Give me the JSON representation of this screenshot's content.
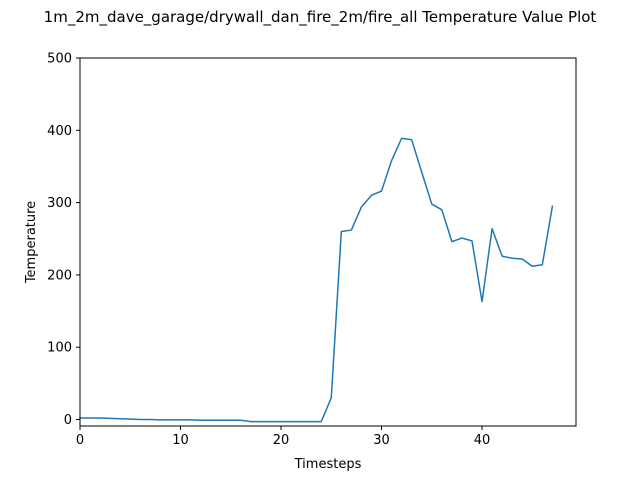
{
  "chart_data": {
    "type": "line",
    "title": "1m_2m_dave_garage/drywall_dan_fire_2m/fire_all Temperature Value Plot",
    "xlabel": "Timesteps",
    "ylabel": "Temperature",
    "xlim": [
      0,
      49.35
    ],
    "ylim": [
      -9,
      500
    ],
    "xticks": [
      0,
      10,
      20,
      30,
      40
    ],
    "yticks": [
      0,
      100,
      200,
      300,
      400,
      500
    ],
    "grid": false,
    "series": [
      {
        "color": "#1f77b4",
        "x": [
          0,
          1,
          2,
          3,
          4,
          5,
          6,
          7,
          8,
          9,
          10,
          11,
          12,
          13,
          14,
          15,
          16,
          17,
          18,
          19,
          20,
          21,
          22,
          23,
          24,
          25,
          26,
          27,
          28,
          29,
          30,
          31,
          32,
          33,
          34,
          35,
          36,
          37,
          38,
          39,
          40,
          41,
          42,
          43,
          44,
          45,
          46,
          47
        ],
        "y": [
          2,
          2,
          2,
          1.5,
          1,
          0.5,
          0,
          0,
          -0.5,
          -0.5,
          -0.5,
          -0.5,
          -1,
          -1,
          -1,
          -1,
          -1,
          -3,
          -3,
          -3,
          -3,
          -3,
          -3,
          -3,
          -3,
          30,
          260,
          262,
          294,
          310,
          316,
          358,
          389,
          387,
          342,
          298,
          290,
          246,
          251,
          247,
          163,
          264,
          226,
          223,
          222,
          212,
          214,
          295
        ]
      }
    ]
  }
}
